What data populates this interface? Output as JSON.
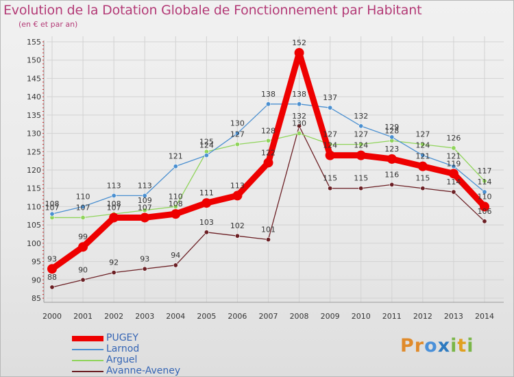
{
  "title": "Evolution de la Dotation Globale de Fonctionnement par Habitant",
  "subtitle": "(en € et par an)",
  "logo": {
    "text": "Proxiti",
    "letters": [
      "P",
      "r",
      "o",
      "x",
      "i",
      "t",
      "i"
    ],
    "colors": [
      "#e08a2a",
      "#e08a2a",
      "#4a90d9",
      "#2d7ac0",
      "#7ab648",
      "#e0a020",
      "#7ab648"
    ]
  },
  "colors": {
    "PUGEY": "#ee0000",
    "Larnod": "#4a8fd0",
    "Arguel": "#8fd45a",
    "Avanne-Aveney": "#6b1f24"
  },
  "chart_data": {
    "type": "line",
    "title": "Evolution de la Dotation Globale de Fonctionnement par Habitant",
    "subtitle": "(en € et par an)",
    "categories": [
      "2000",
      "2001",
      "2002",
      "2003",
      "2004",
      "2005",
      "2006",
      "2007",
      "2008",
      "2009",
      "2010",
      "2011",
      "2012",
      "2013",
      "2014"
    ],
    "ylim": [
      85,
      155
    ],
    "yticks": [
      85,
      90,
      95,
      100,
      105,
      110,
      115,
      120,
      125,
      130,
      135,
      140,
      145,
      150,
      155
    ],
    "grid": true,
    "legend": "bottom-left",
    "series": [
      {
        "name": "PUGEY",
        "values": [
          93,
          99,
          107,
          107,
          108,
          111,
          113,
          122,
          152,
          124,
          124,
          123,
          121,
          119,
          110
        ]
      },
      {
        "name": "Larnod",
        "values": [
          108,
          110,
          113,
          113,
          121,
          124,
          130,
          138,
          138,
          137,
          132,
          129,
          124,
          121,
          114
        ]
      },
      {
        "name": "Arguel",
        "values": [
          107,
          107,
          108,
          109,
          110,
          125,
          127,
          128,
          130,
          127,
          127,
          128,
          127,
          126,
          117
        ]
      },
      {
        "name": "Avanne-Aveney",
        "values": [
          88,
          90,
          92,
          93,
          94,
          103,
          102,
          101,
          132,
          115,
          115,
          116,
          115,
          114,
          106
        ]
      }
    ]
  }
}
